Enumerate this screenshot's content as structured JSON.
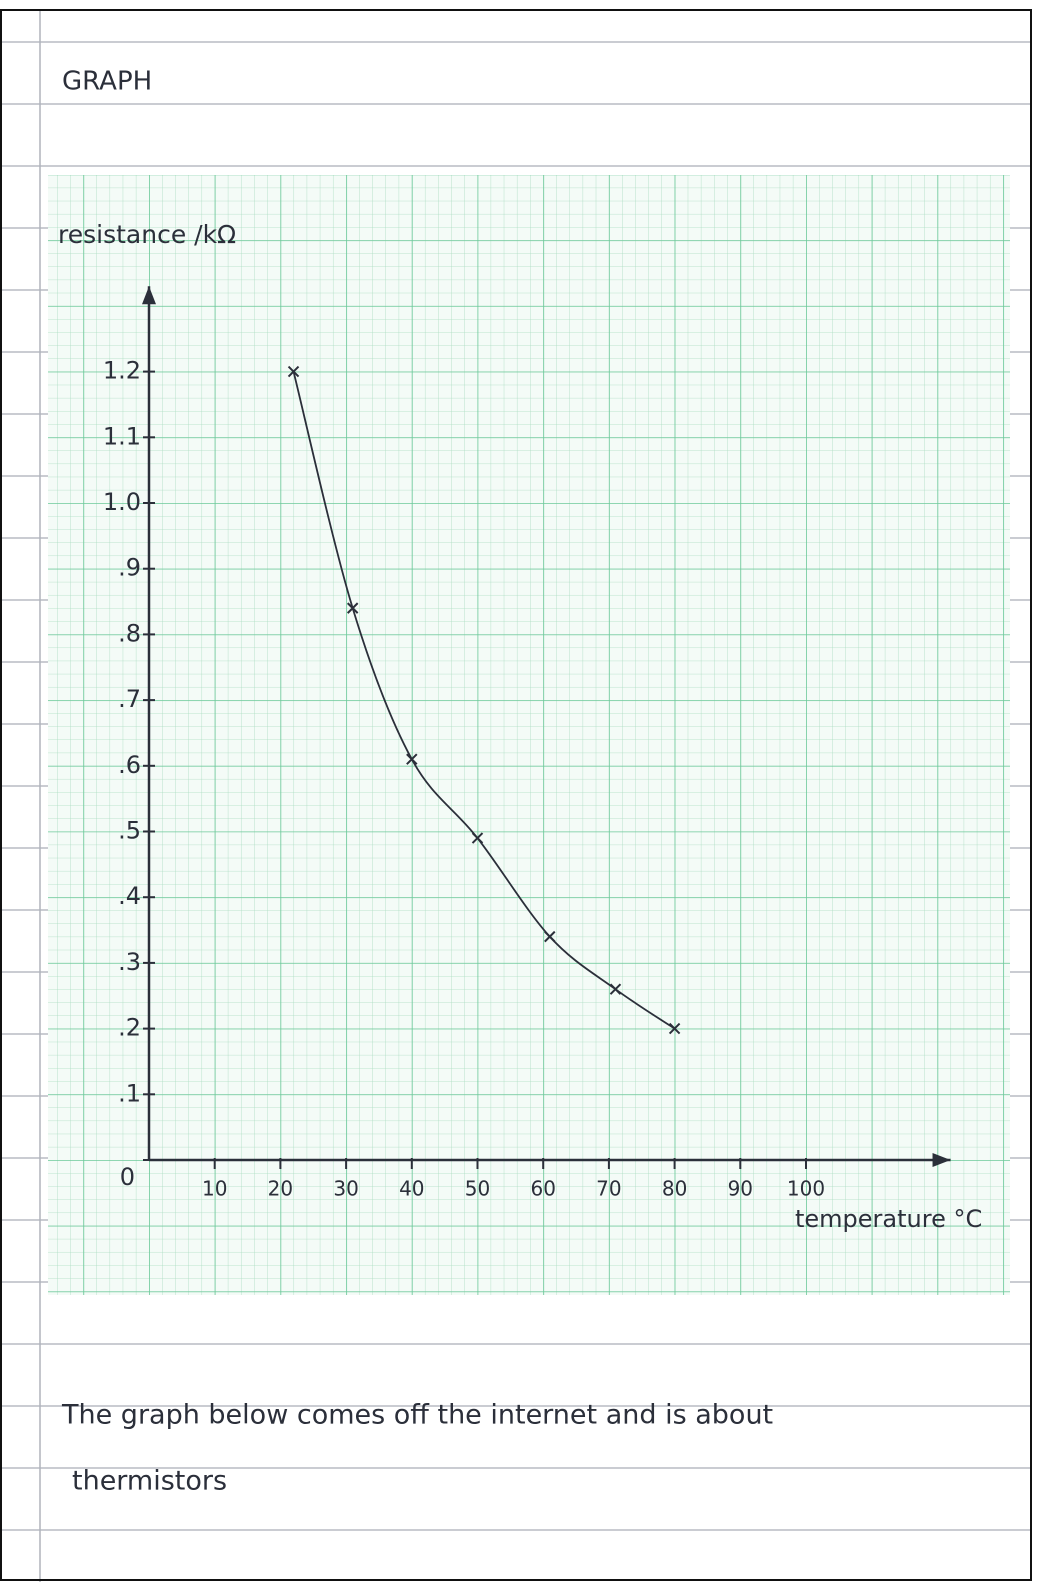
{
  "header": {
    "title": "GRAPH"
  },
  "chart_data": {
    "type": "line",
    "x_label": "temperature °C",
    "y_label": "resistance /kΩ",
    "x": [
      22,
      31,
      40,
      50,
      61,
      71,
      80
    ],
    "values": [
      1.2,
      0.84,
      0.61,
      0.49,
      0.34,
      0.26,
      0.2
    ],
    "color": "#2b2f3a",
    "markers": "x",
    "xlim": [
      0,
      122
    ],
    "ylim": [
      0,
      1.33
    ],
    "xticks": [
      10,
      20,
      30,
      40,
      50,
      60,
      70,
      80,
      90,
      100
    ],
    "yticks": [
      0,
      {
        "value": 0.1,
        "label": ".1"
      },
      {
        "value": 0.2,
        "label": ".2"
      },
      {
        "value": 0.3,
        "label": ".3"
      },
      {
        "value": 0.4,
        "label": ".4"
      },
      {
        "value": 0.5,
        "label": ".5"
      },
      {
        "value": 0.6,
        "label": ".6"
      },
      {
        "value": 0.7,
        "label": ".7"
      },
      {
        "value": 0.8,
        "label": ".8"
      },
      {
        "value": 0.9,
        "label": ".9"
      },
      {
        "value": 1,
        "label": "1.0"
      },
      1.1,
      1.2
    ]
  },
  "note": {
    "lines": [
      "The graph below comes off the internet and is about",
      "thermistors"
    ]
  }
}
